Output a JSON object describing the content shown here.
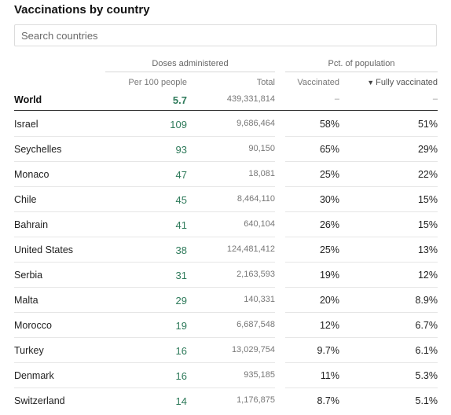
{
  "title": "Vaccinations by country",
  "search": {
    "placeholder": "Search countries",
    "value": ""
  },
  "groups": {
    "doses": "Doses administered",
    "pct": "Pct. of population"
  },
  "columns": {
    "per100": "Per 100 people",
    "total": "Total",
    "vaccinated": "Vaccinated",
    "fully": "Fully vaccinated",
    "sort_arrow": "▼"
  },
  "colors": {
    "accent_green": "#2e7a5a"
  },
  "world": {
    "country": "World",
    "per100": "5.7",
    "total": "439,331,814",
    "vaccinated": "–",
    "fully": "–"
  },
  "rows": [
    {
      "country": "Israel",
      "per100": "109",
      "total": "9,686,464",
      "vaccinated": "58%",
      "fully": "51%"
    },
    {
      "country": "Seychelles",
      "per100": "93",
      "total": "90,150",
      "vaccinated": "65%",
      "fully": "29%"
    },
    {
      "country": "Monaco",
      "per100": "47",
      "total": "18,081",
      "vaccinated": "25%",
      "fully": "22%"
    },
    {
      "country": "Chile",
      "per100": "45",
      "total": "8,464,110",
      "vaccinated": "30%",
      "fully": "15%"
    },
    {
      "country": "Bahrain",
      "per100": "41",
      "total": "640,104",
      "vaccinated": "26%",
      "fully": "15%"
    },
    {
      "country": "United States",
      "per100": "38",
      "total": "124,481,412",
      "vaccinated": "25%",
      "fully": "13%"
    },
    {
      "country": "Serbia",
      "per100": "31",
      "total": "2,163,593",
      "vaccinated": "19%",
      "fully": "12%"
    },
    {
      "country": "Malta",
      "per100": "29",
      "total": "140,331",
      "vaccinated": "20%",
      "fully": "8.9%"
    },
    {
      "country": "Morocco",
      "per100": "19",
      "total": "6,687,548",
      "vaccinated": "12%",
      "fully": "6.7%"
    },
    {
      "country": "Turkey",
      "per100": "16",
      "total": "13,029,754",
      "vaccinated": "9.7%",
      "fully": "6.1%"
    },
    {
      "country": "Denmark",
      "per100": "16",
      "total": "935,185",
      "vaccinated": "11%",
      "fully": "5.3%"
    },
    {
      "country": "Switzerland",
      "per100": "14",
      "total": "1,176,875",
      "vaccinated": "8.7%",
      "fully": "5.1%"
    }
  ]
}
